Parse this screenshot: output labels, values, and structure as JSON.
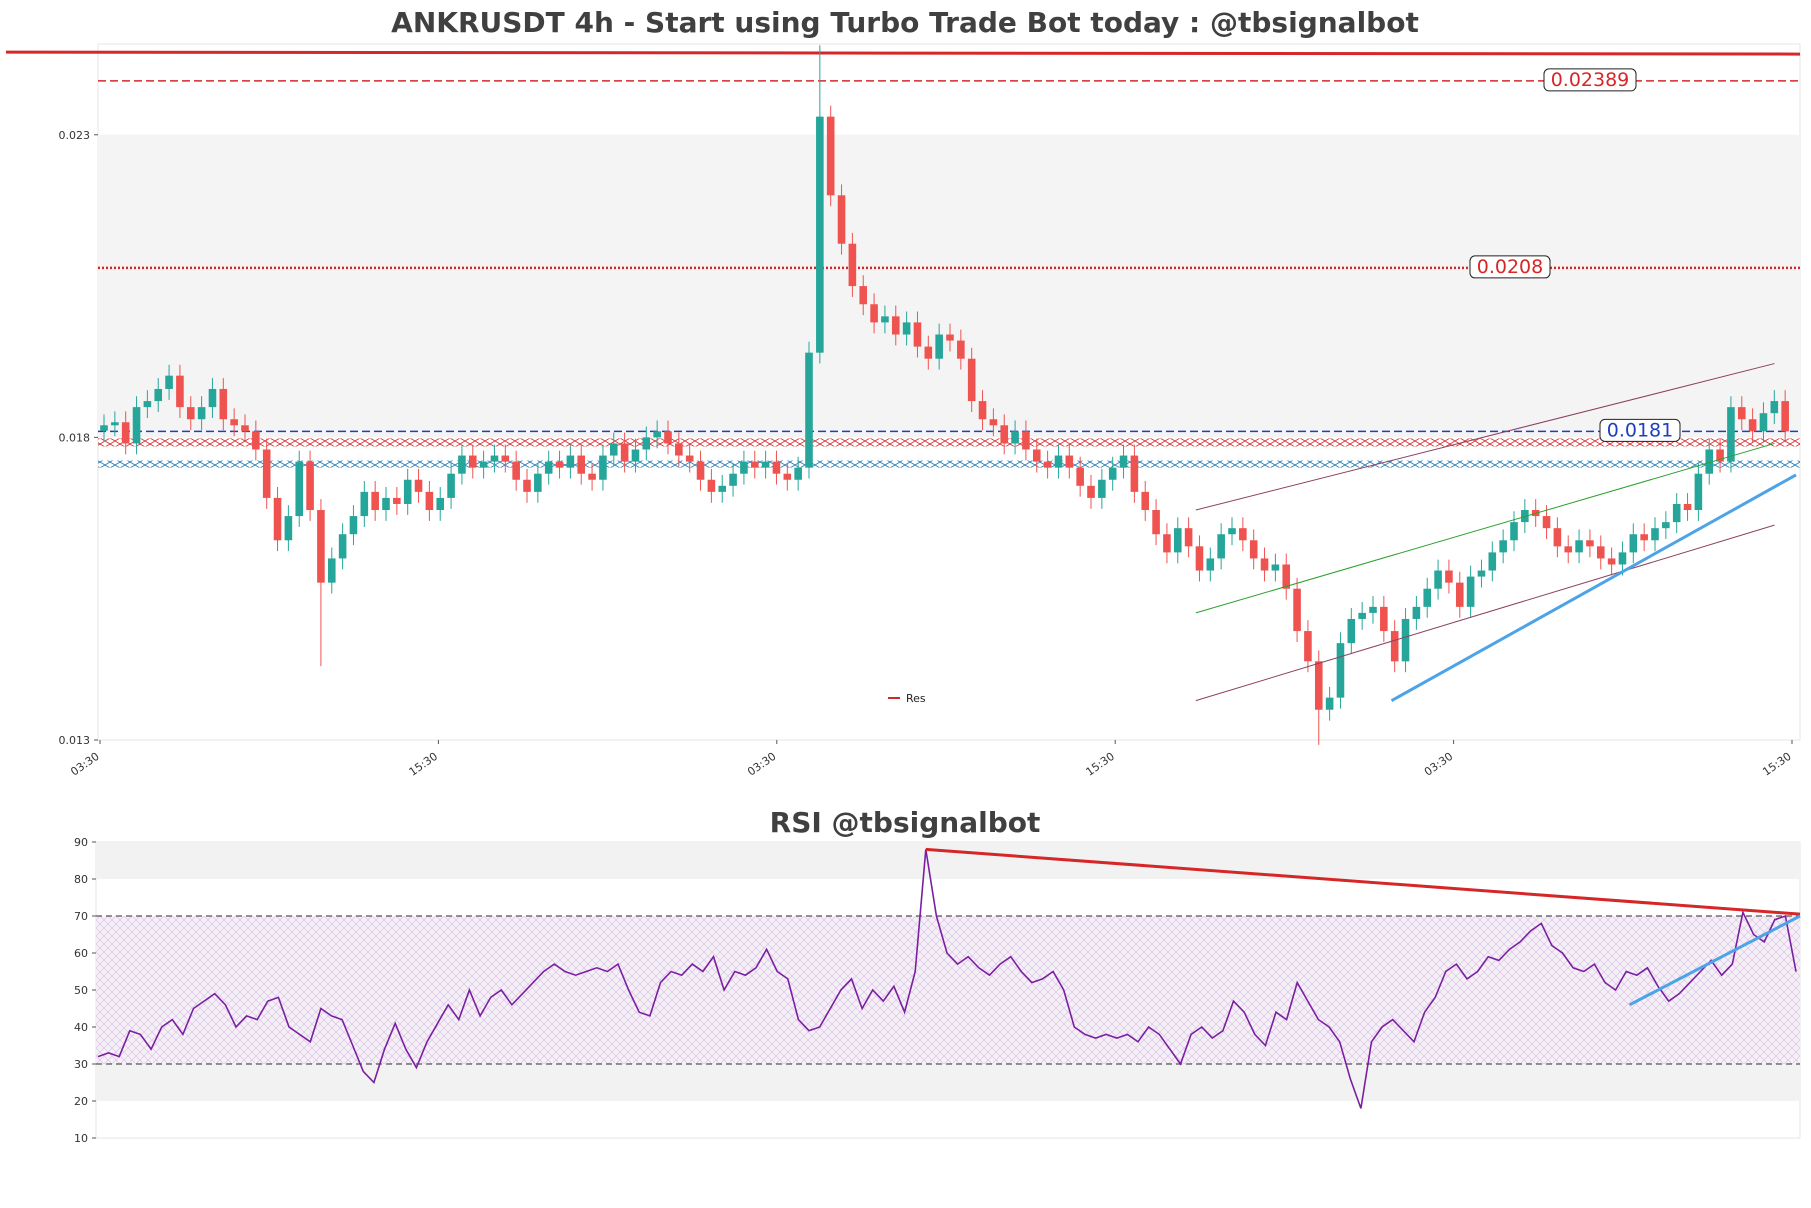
{
  "chart_data": [
    {
      "type": "candlestick",
      "title": "ANKRUSDT 4h - Start using Turbo Trade Bot today : @tbsignalbot",
      "y_ticks": [
        "0.013",
        "0.018",
        "0.023"
      ],
      "x_ticks": [
        "03:30",
        "15:30",
        "03:30",
        "15:30",
        "03:30",
        "15:30"
      ],
      "ylim": [
        0.013,
        0.0245
      ],
      "grid": false,
      "legend": {
        "position": "lower-center",
        "entries": [
          "Res"
        ]
      },
      "resistance_top": 0.02435,
      "levels": [
        {
          "value": 0.02389,
          "label": "0.02389",
          "style": "dashed",
          "color": "#d62728"
        },
        {
          "value": 0.0208,
          "label": "0.0208",
          "style": "dotted",
          "color": "#d62728"
        },
        {
          "value": 0.0181,
          "label": "0.0181",
          "style": "dashed",
          "color": "#1f3fbf"
        }
      ],
      "resistance_zone": [
        0.01785,
        0.01795
      ],
      "support_zone": [
        0.01755,
        0.01765
      ],
      "candles_count": 300,
      "closes": [
        0.0182,
        0.01825,
        0.0179,
        0.0185,
        0.0186,
        0.0188,
        0.01902,
        0.0185,
        0.0183,
        0.0185,
        0.0188,
        0.0183,
        0.0182,
        0.0181,
        0.0178,
        0.017,
        0.0163,
        0.0167,
        0.0176,
        0.0168,
        0.0156,
        0.016,
        0.0164,
        0.0167,
        0.0171,
        0.0168,
        0.017,
        0.0169,
        0.0173,
        0.0171,
        0.0168,
        0.017,
        0.0174,
        0.0177,
        0.0175,
        0.0176,
        0.0177,
        0.0176,
        0.0173,
        0.0171,
        0.0174,
        0.0176,
        0.0175,
        0.0177,
        0.0174,
        0.0173,
        0.0177,
        0.0179,
        0.0176,
        0.0178,
        0.018,
        0.0181,
        0.0179,
        0.0177,
        0.0176,
        0.0173,
        0.0171,
        0.0172,
        0.0174,
        0.0176,
        0.0175,
        0.0176,
        0.0174,
        0.0173,
        0.0175,
        0.0194,
        0.0233,
        0.022,
        0.0212,
        0.0205,
        0.0202,
        0.0199,
        0.02,
        0.0197,
        0.0199,
        0.0195,
        0.0193,
        0.0197,
        0.0196,
        0.0193,
        0.0186,
        0.0183,
        0.0182,
        0.0179,
        0.0181,
        0.0178,
        0.0176,
        0.0175,
        0.0177,
        0.0175,
        0.0172,
        0.017,
        0.0173,
        0.0175,
        0.0177,
        0.0171,
        0.0168,
        0.0164,
        0.0161,
        0.0165,
        0.0162,
        0.0158,
        0.016,
        0.0164,
        0.0165,
        0.0163,
        0.016,
        0.0158,
        0.0159,
        0.0155,
        0.0148,
        0.0143,
        0.0135,
        0.0137,
        0.0146,
        0.015,
        0.0151,
        0.0152,
        0.0148,
        0.0143,
        0.015,
        0.0152,
        0.0155,
        0.0158,
        0.0156,
        0.0152,
        0.0157,
        0.0158,
        0.0161,
        0.0163,
        0.0166,
        0.0168,
        0.0167,
        0.0165,
        0.0162,
        0.0161,
        0.0163,
        0.0162,
        0.016,
        0.0159,
        0.0161,
        0.0164,
        0.0163,
        0.0165,
        0.0166,
        0.0169,
        0.0168,
        0.0174,
        0.0178,
        0.0176,
        0.0185,
        0.0183,
        0.0181,
        0.0184,
        0.0186,
        0.0181
      ],
      "candles_sampled_every": 2
    },
    {
      "type": "line",
      "title": "RSI @tbsignalbot",
      "y_ticks": [
        "10",
        "20",
        "30",
        "40",
        "50",
        "60",
        "70",
        "80",
        "90"
      ],
      "ylim": [
        10,
        90
      ],
      "reference_lines": [
        30,
        70
      ],
      "series": [
        {
          "color": "#7b1fa2",
          "values": [
            32,
            33,
            32,
            39,
            38,
            34,
            40,
            42,
            38,
            45,
            47,
            49,
            46,
            40,
            43,
            42,
            47,
            48,
            40,
            38,
            36,
            45,
            43,
            42,
            35,
            28,
            25,
            34,
            41,
            34,
            29,
            36,
            41,
            46,
            42,
            50,
            43,
            48,
            50,
            46,
            49,
            52,
            55,
            57,
            55,
            54,
            55,
            56,
            55,
            57,
            50,
            44,
            43,
            52,
            55,
            54,
            57,
            55,
            59,
            50,
            55,
            54,
            56,
            61,
            55,
            53,
            42,
            39,
            40,
            45,
            50,
            53,
            45,
            50,
            47,
            51,
            44,
            55,
            88,
            70,
            60,
            57,
            59,
            56,
            54,
            57,
            59,
            55,
            52,
            53,
            55,
            50,
            40,
            38,
            37,
            38,
            37,
            38,
            36,
            40,
            38,
            34,
            30,
            38,
            40,
            37,
            39,
            47,
            44,
            38,
            35,
            44,
            42,
            52,
            47,
            42,
            40,
            36,
            26,
            18,
            36,
            40,
            42,
            39,
            36,
            44,
            48,
            55,
            57,
            53,
            55,
            59,
            58,
            61,
            63,
            66,
            68,
            62,
            60,
            56,
            55,
            57,
            52,
            50,
            55,
            54,
            56,
            51,
            47,
            49,
            52,
            55,
            58,
            54,
            57,
            71,
            65,
            63,
            69,
            70,
            55
          ],
          "sampled_every": 2
        }
      ]
    }
  ]
}
